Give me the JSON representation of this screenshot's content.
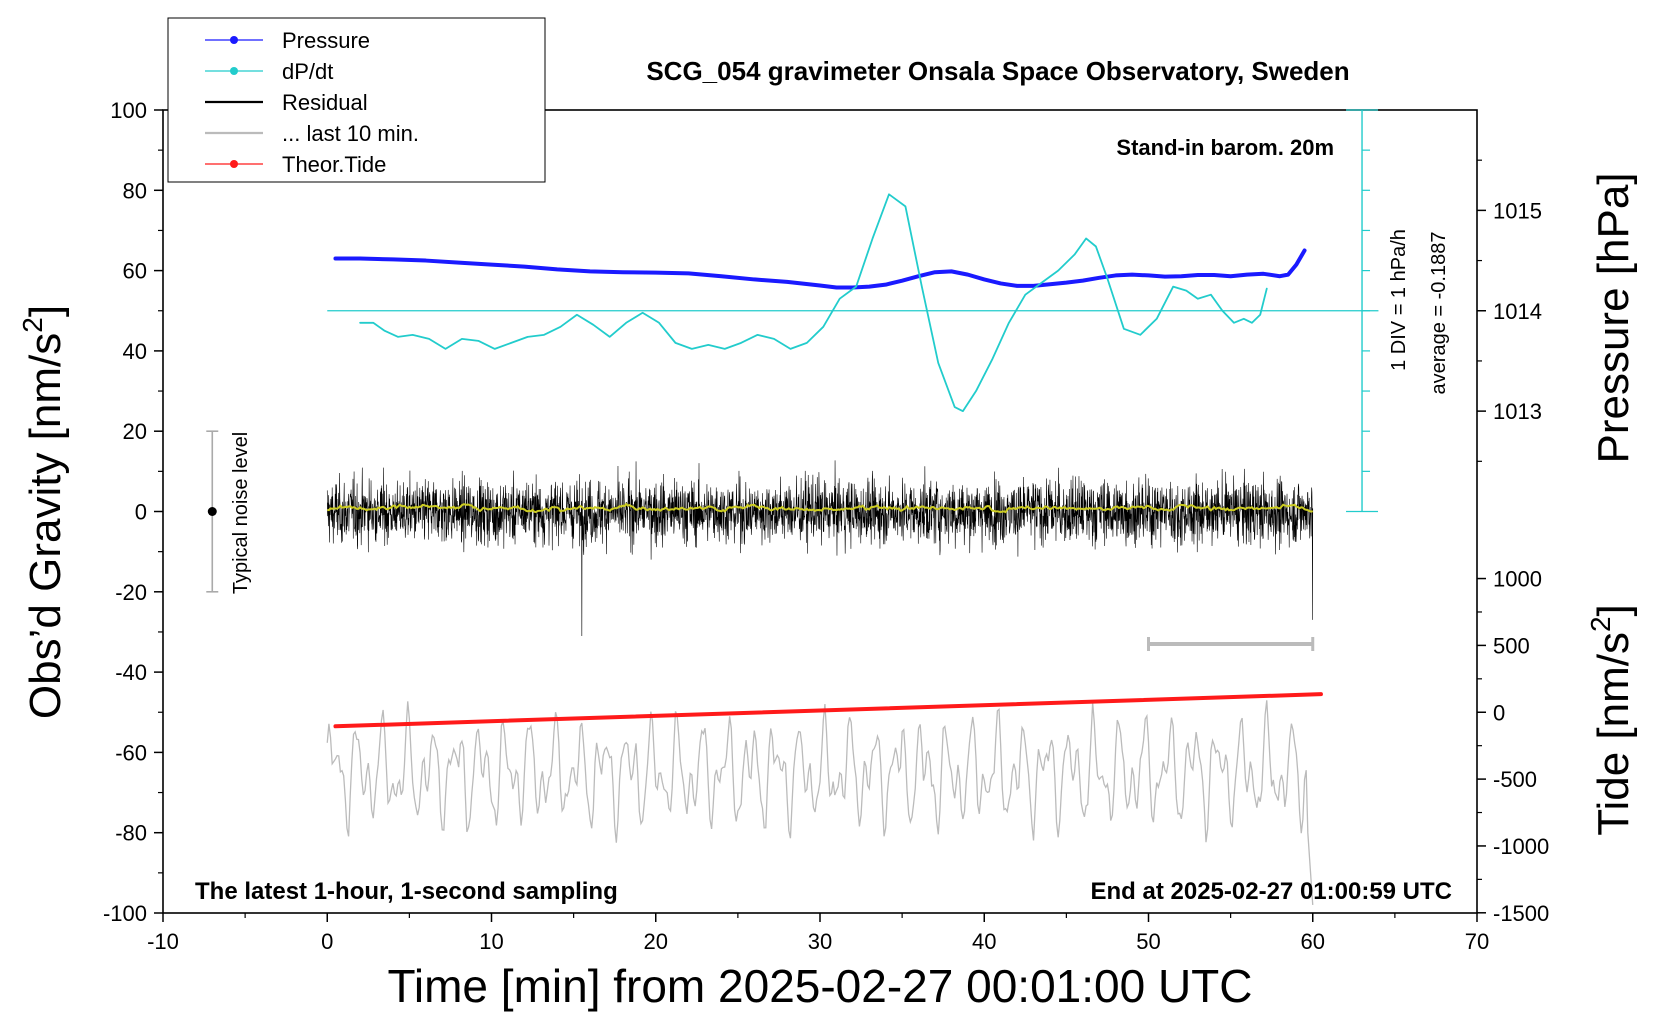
{
  "chart_data": {
    "type": "line",
    "title": "SCG_054 gravimeter Onsala Space Observatory, Sweden",
    "xlabel": "Time [min] from 2025-02-27 00:01:00 UTC",
    "ylabel_left_main": "Obs’d Gravity [nm/s",
    "ylabel_left_sup": "2",
    "ylabel_left_end": "]",
    "ylabel_right_top": "Pressure [hPa]",
    "ylabel_right_bottom_main": "Tide [nm/s",
    "ylabel_right_bottom_sup": "2",
    "ylabel_right_bottom_end": "]",
    "xlim": [
      -10,
      70
    ],
    "ylim": [
      -100,
      100
    ],
    "x_ticks": [
      "-10",
      "0",
      "10",
      "20",
      "30",
      "40",
      "50",
      "60",
      "70"
    ],
    "y_ticks": [
      "-100",
      "-80",
      "-60",
      "-40",
      "-20",
      "0",
      "20",
      "40",
      "60",
      "80",
      "100"
    ],
    "pressure_axis": {
      "ticks": [
        "1013",
        "1014",
        "1015"
      ],
      "values": [
        1013,
        1014,
        1015
      ],
      "y_of_1014": 50,
      "gravity_units_per_hpa": 25
    },
    "tide_axis": {
      "ticks": [
        "1000",
        "500",
        "0",
        "-500",
        "-1000",
        "-1500"
      ],
      "values": [
        1000,
        500,
        0,
        -500,
        -1000,
        -1500
      ],
      "y_of_0": -50,
      "gravity_units_per_1000": 33.3
    },
    "legend": [
      {
        "label": "Pressure",
        "color": "#1a1aff",
        "marker": true
      },
      {
        "label": "dP/dt",
        "color": "#22cccc",
        "marker": true
      },
      {
        "label": "Residual",
        "color": "#000000",
        "marker": false
      },
      {
        "label": "... last 10 min.",
        "color": "#bbbbbb",
        "marker": false
      },
      {
        "label": "Theor.Tide",
        "color": "#ff1a1a",
        "marker": true
      }
    ],
    "annotations": {
      "barometer": "Stand-in barom. 20m",
      "dpdt_scale": "1 DIV = 1 hPa/h",
      "dpdt_average": "average = -0.1887",
      "noise_level": "Typical noise level",
      "bottom_left": "The latest 1-hour, 1-second sampling",
      "bottom_right": "End at 2025-02-27 01:00:59 UTC"
    },
    "noise_bar": {
      "x": -7,
      "y_min": -20,
      "y_max": 20
    },
    "last10_marker": {
      "x_start": 50,
      "x_end": 60,
      "y": -33
    },
    "dpdt_reference": {
      "y": 50,
      "x_start": 0,
      "x_end": 64
    },
    "dpdt_scale_bar": {
      "x": 63,
      "y_min": 0,
      "y_max": 100,
      "div": 10
    },
    "series": [
      {
        "name": "Pressure",
        "color": "#1a1aff",
        "x": [
          0.5,
          2,
          4,
          6,
          8,
          10,
          12,
          14,
          16,
          18,
          20,
          22,
          24,
          26,
          28,
          30,
          31,
          32,
          33,
          34,
          35,
          36,
          37,
          38,
          39,
          40,
          41,
          42,
          43,
          44,
          45,
          46,
          47,
          48,
          49,
          50,
          51,
          52,
          53,
          54,
          55,
          56,
          57,
          58,
          58.5,
          59,
          59.5
        ],
        "values": [
          63,
          63,
          62.8,
          62.5,
          62,
          61.5,
          61,
          60.3,
          59.8,
          59.6,
          59.5,
          59.3,
          58.6,
          57.8,
          57.2,
          56.3,
          55.8,
          55.8,
          56,
          56.5,
          57.5,
          58.6,
          59.6,
          59.8,
          59,
          57.8,
          56.8,
          56.2,
          56.2,
          56.6,
          57,
          57.5,
          58.2,
          58.8,
          59,
          58.8,
          58.5,
          58.6,
          58.9,
          58.9,
          58.6,
          59,
          59.2,
          58.6,
          59,
          61.5,
          65
        ]
      },
      {
        "name": "dP/dt",
        "color": "#22cccc",
        "x": [
          2,
          2.8,
          3.5,
          4.3,
          5.2,
          6.2,
          7.2,
          8.2,
          9.2,
          10.2,
          11.2,
          12.2,
          13.2,
          14.2,
          15.2,
          16.2,
          17.2,
          18.2,
          19.2,
          20.2,
          21.2,
          22.2,
          23.2,
          24.2,
          25.2,
          26.2,
          27.2,
          28.2,
          29.2,
          30.2,
          31.2,
          32.2,
          33.2,
          34.2,
          35.2,
          36.2,
          37.2,
          38.2,
          38.7,
          39.5,
          40.5,
          41.5,
          42.5,
          43.5,
          44.5,
          45.5,
          46.2,
          46.8,
          47.5,
          48.5,
          49.5,
          50.5,
          51.5,
          52.3,
          53,
          53.8,
          54.5,
          55.2,
          55.8,
          56.3,
          56.8,
          57.2
        ],
        "values": [
          47,
          47,
          45,
          43.5,
          44,
          43,
          40.5,
          43,
          42.5,
          40.5,
          42,
          43.5,
          44,
          46,
          49,
          46.5,
          43.5,
          47,
          49.5,
          47,
          42,
          40.5,
          41.5,
          40.5,
          42,
          44,
          43,
          40.5,
          42,
          46,
          53,
          56,
          68,
          79,
          76,
          56,
          37,
          26,
          25,
          30,
          38,
          47,
          54,
          57,
          60,
          64,
          68,
          66,
          58,
          45.5,
          44,
          48,
          56,
          55,
          53,
          54,
          50,
          47,
          48,
          47,
          49,
          55.5
        ]
      },
      {
        "name": "Theor.Tide",
        "color": "#ff1a1a",
        "x": [
          0.5,
          60.5
        ],
        "values": [
          -53.5,
          -45.5
        ]
      }
    ]
  }
}
